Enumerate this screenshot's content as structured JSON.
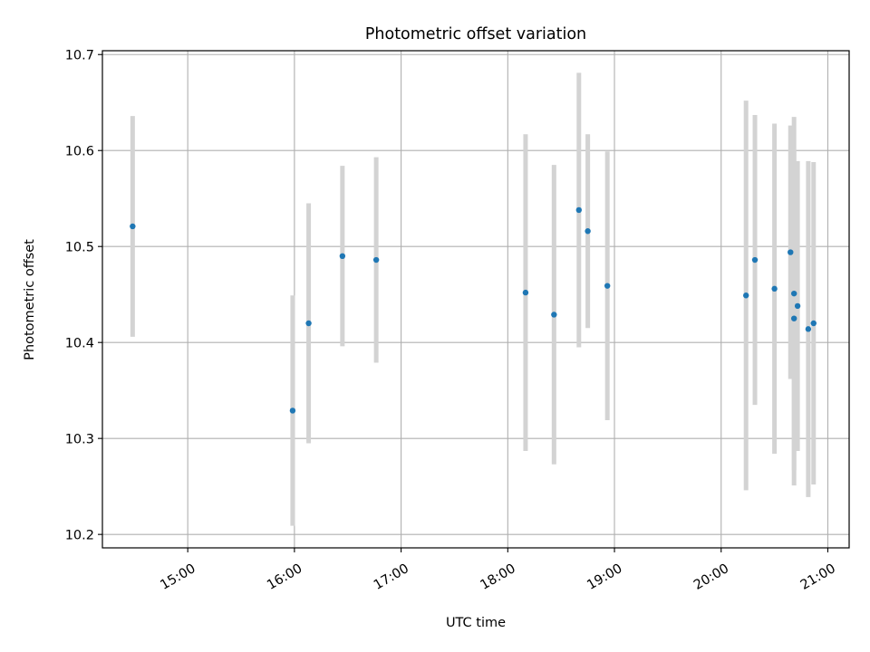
{
  "chart_data": {
    "type": "scatter",
    "title": "Photometric offset variation",
    "xlabel": "UTC time",
    "ylabel": "Photometric offset",
    "x_is_time": true,
    "xlim": [
      "14:12",
      "21:12"
    ],
    "ylim": [
      10.186,
      10.704
    ],
    "x_ticks": [
      "15:00",
      "16:00",
      "17:00",
      "18:00",
      "19:00",
      "20:00",
      "21:00"
    ],
    "y_ticks": [
      10.2,
      10.3,
      10.4,
      10.5,
      10.6,
      10.7
    ],
    "y_tick_labels": [
      "10.2",
      "10.3",
      "10.4",
      "10.5",
      "10.6",
      "10.7"
    ],
    "grid": true,
    "colors": {
      "point": "#1f77b4",
      "errorbar": "#d3d3d3",
      "grid": "#b0b0b0"
    },
    "series": [
      {
        "x": [
          "14:29",
          "15:59",
          "16:08",
          "16:27",
          "16:46",
          "18:10",
          "18:26",
          "18:40",
          "18:45",
          "18:56",
          "20:14",
          "20:19",
          "20:30",
          "20:39",
          "20:41",
          "20:41",
          "20:43",
          "20:49",
          "20:52"
        ],
        "y": [
          10.521,
          10.329,
          10.42,
          10.49,
          10.486,
          10.452,
          10.429,
          10.538,
          10.516,
          10.459,
          10.449,
          10.486,
          10.456,
          10.494,
          10.451,
          10.425,
          10.438,
          10.414,
          10.42
        ],
        "yerr": [
          0.115,
          0.12,
          0.125,
          0.094,
          0.107,
          0.165,
          0.156,
          0.143,
          0.101,
          0.14,
          0.203,
          0.151,
          0.172,
          0.132,
          0.184,
          0.174,
          0.151,
          0.175,
          0.168
        ]
      }
    ]
  }
}
